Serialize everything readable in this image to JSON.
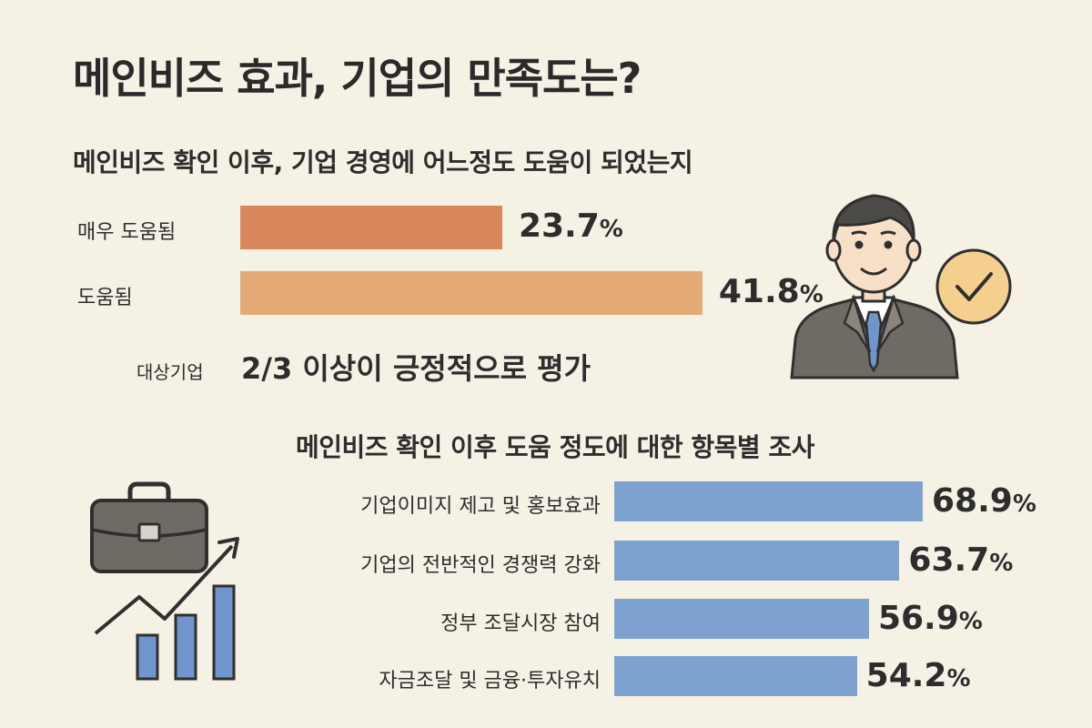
{
  "title": "메인비즈 효과, 기업의 만족도는?",
  "chart_data": [
    {
      "type": "bar",
      "title": "메인비즈 확인 이후, 기업 경영에 어느정도 도움이 되었는지",
      "categories": [
        "매우 도움됨",
        "도움됨"
      ],
      "values": [
        23.7,
        41.8
      ],
      "value_labels": [
        "23.7",
        "41.8"
      ],
      "unit": "%",
      "colors": [
        "#d9875a",
        "#e4ab76"
      ]
    },
    {
      "type": "bar",
      "title": "메인비즈 확인 이후 도움 정도에 대한 항목별 조사",
      "categories": [
        "기업이미지 제고 및 홍보효과",
        "기업의 전반적인 경쟁력 강화",
        "정부 조달시장 참여",
        "자금조달 및 금융·투자유치"
      ],
      "values": [
        68.9,
        63.7,
        56.9,
        54.2
      ],
      "value_labels": [
        "68.9",
        "63.7",
        "56.9",
        "54.2"
      ],
      "unit": "%",
      "colors": [
        "#7ea2d0"
      ]
    }
  ],
  "summary": {
    "prefix": "대상기업",
    "text": "2/3 이상이 긍정적으로 평가"
  },
  "icons": [
    "businessman-check-icon",
    "briefcase-growth-icon"
  ],
  "colors": {
    "background": "#f6f1e5",
    "orange_dark": "#d9875a",
    "orange_light": "#e4ab76",
    "blue": "#7ea2d0"
  }
}
